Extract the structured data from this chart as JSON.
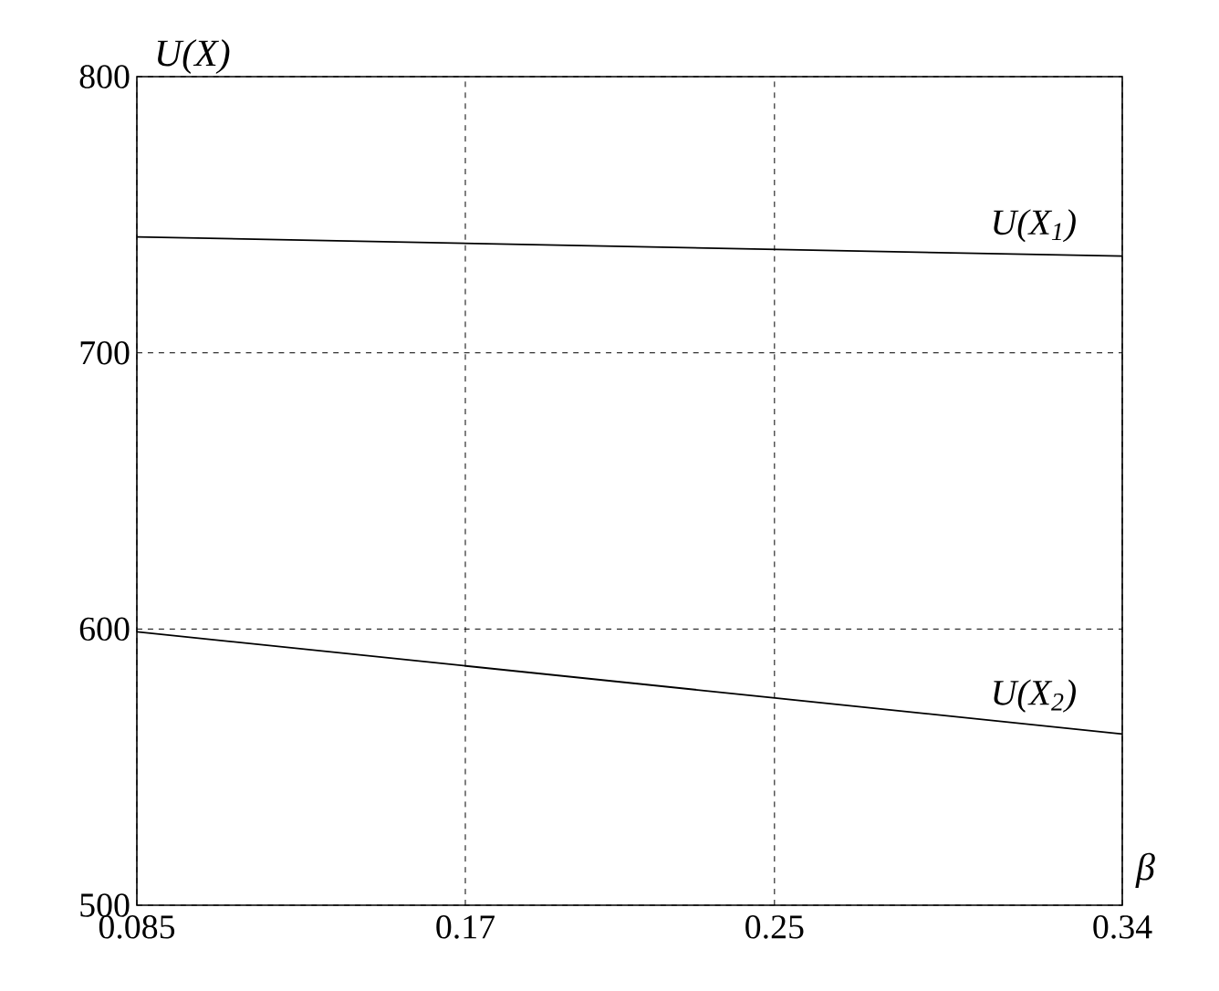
{
  "chart_data": {
    "type": "line",
    "xlabel": "β",
    "ylabel": "U(X)",
    "x": [
      0.085,
      0.34
    ],
    "series": [
      {
        "name": "U(X$_{1}$)",
        "color": "#000000",
        "values": [
          742,
          735
        ]
      },
      {
        "name": "U(X$_{2}$)",
        "color": "#000000",
        "values": [
          599,
          562
        ]
      }
    ],
    "xlim": [
      0.085,
      0.34
    ],
    "ylim": [
      500,
      800
    ],
    "xticks": [
      0.085,
      0.17,
      0.25,
      0.34
    ],
    "yticks": [
      500,
      600,
      700,
      800
    ],
    "grid": true
  }
}
